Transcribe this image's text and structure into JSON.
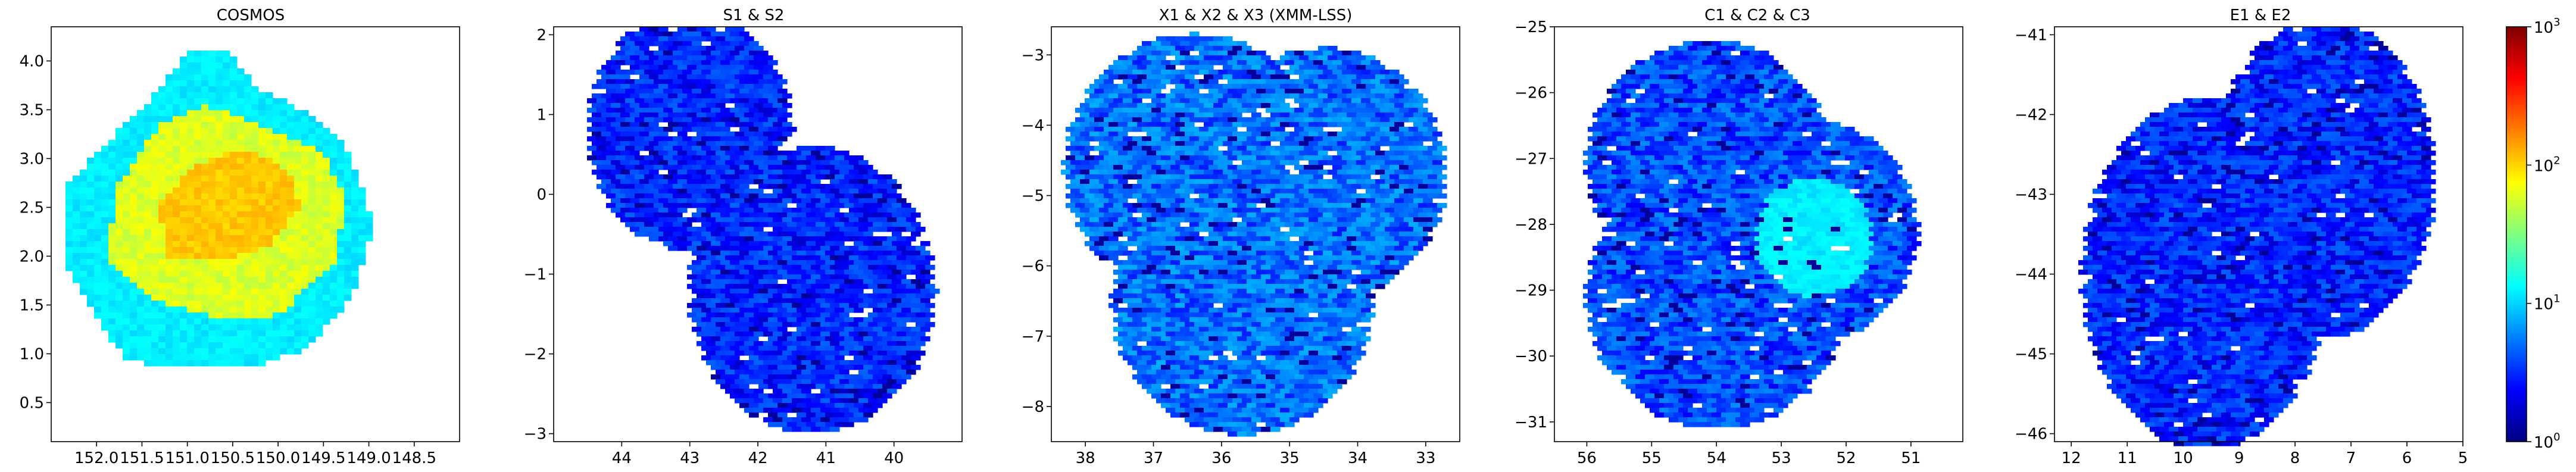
{
  "colormap": "jet",
  "colors": {
    "jet_stops": [
      "#00007f",
      "#0000ff",
      "#007fff",
      "#00ffff",
      "#7fff7f",
      "#ffff00",
      "#ff7f00",
      "#ff0000",
      "#7f0000"
    ],
    "frame": "#000000",
    "background": "#ffffff"
  },
  "colorbar": {
    "scale": "log",
    "range": [
      1,
      1000
    ],
    "ticks": [
      {
        "value": 1,
        "base": "10",
        "exp": "0"
      },
      {
        "value": 10,
        "base": "10",
        "exp": "1"
      },
      {
        "value": 100,
        "base": "10",
        "exp": "2"
      },
      {
        "value": 1000,
        "base": "10",
        "exp": "3"
      }
    ]
  },
  "chart_data": [
    {
      "type": "heatmap",
      "title": "COSMOS",
      "xlim": [
        152.5,
        148.0
      ],
      "ylim": [
        0.1,
        4.35
      ],
      "xticks": [
        "152.0",
        "151.5",
        "151.0",
        "150.5",
        "150.0",
        "149.5",
        "149.0",
        "148.5"
      ],
      "yticks": [
        "0.5",
        "1.0",
        "1.5",
        "2.0",
        "2.5",
        "3.0",
        "3.5",
        "4.0"
      ],
      "x_inverted": true,
      "grid": false,
      "regions": [
        {
          "shape": "outer-footprint",
          "level": 12
        },
        {
          "shape": "inner-deep-field",
          "level": 60
        },
        {
          "shape": "ultra-deep-core",
          "level": 110
        }
      ]
    },
    {
      "type": "heatmap",
      "title": "S1 & S2",
      "xlim": [
        45.0,
        39.0
      ],
      "ylim": [
        -3.1,
        2.1
      ],
      "xticks": [
        "44",
        "43",
        "42",
        "41",
        "40"
      ],
      "yticks": [
        "-3",
        "-2",
        "-1",
        "0",
        "1",
        "2"
      ],
      "x_inverted": true,
      "grid": false,
      "fields": [
        {
          "name": "S1",
          "center": [
            43.0,
            0.8
          ],
          "radius": 1.5
        },
        {
          "name": "S2",
          "center": [
            41.2,
            -1.2
          ],
          "radius": 1.8
        }
      ],
      "typical_level": 3
    },
    {
      "type": "heatmap",
      "title": "X1 & X2 & X3 (XMM-LSS)",
      "xlim": [
        38.5,
        32.5
      ],
      "ylim": [
        -8.5,
        -2.6
      ],
      "xticks": [
        "38",
        "37",
        "36",
        "35",
        "34",
        "33"
      ],
      "yticks": [
        "-8",
        "-7",
        "-6",
        "-5",
        "-4",
        "-3"
      ],
      "x_inverted": true,
      "grid": false,
      "fields": [
        {
          "name": "X1",
          "center": [
            36.4,
            -4.6
          ],
          "radius": 1.9
        },
        {
          "name": "X2",
          "center": [
            34.5,
            -4.7
          ],
          "radius": 1.8
        },
        {
          "name": "X3",
          "center": [
            35.7,
            -6.5
          ],
          "radius": 1.9
        }
      ],
      "typical_level": 5
    },
    {
      "type": "heatmap",
      "title": "C1 & C2 & C3",
      "xlim": [
        56.5,
        50.2
      ],
      "ylim": [
        -31.3,
        -25.0
      ],
      "xticks": [
        "56",
        "55",
        "54",
        "53",
        "52",
        "51"
      ],
      "yticks": [
        "-31",
        "-30",
        "-29",
        "-28",
        "-27",
        "-26",
        "-25"
      ],
      "x_inverted": true,
      "grid": false,
      "fields": [
        {
          "name": "C1",
          "center": [
            54.1,
            -27.1
          ],
          "radius": 1.9
        },
        {
          "name": "C2",
          "center": [
            52.6,
            -28.1
          ],
          "radius": 1.7
        },
        {
          "name": "C3",
          "center": [
            54.0,
            -29.1
          ],
          "radius": 2.0
        }
      ],
      "deep_patch": {
        "center": [
          52.5,
          -28.2
        ],
        "level": 12
      },
      "typical_level": 4
    },
    {
      "type": "heatmap",
      "title": "E1 & E2",
      "xlim": [
        12.3,
        5.0
      ],
      "ylim": [
        -46.1,
        -40.9
      ],
      "xticks": [
        "12",
        "11",
        "10",
        "9",
        "8",
        "7",
        "6",
        "5"
      ],
      "yticks": [
        "-46",
        "-45",
        "-44",
        "-43",
        "-42",
        "-41"
      ],
      "x_inverted": true,
      "grid": false,
      "fields": [
        {
          "name": "E1",
          "center": [
            7.5,
            -42.8
          ],
          "radius": 2.0
        },
        {
          "name": "E2",
          "center": [
            9.6,
            -44.0
          ],
          "radius": 2.2
        }
      ],
      "typical_level": 3
    }
  ]
}
